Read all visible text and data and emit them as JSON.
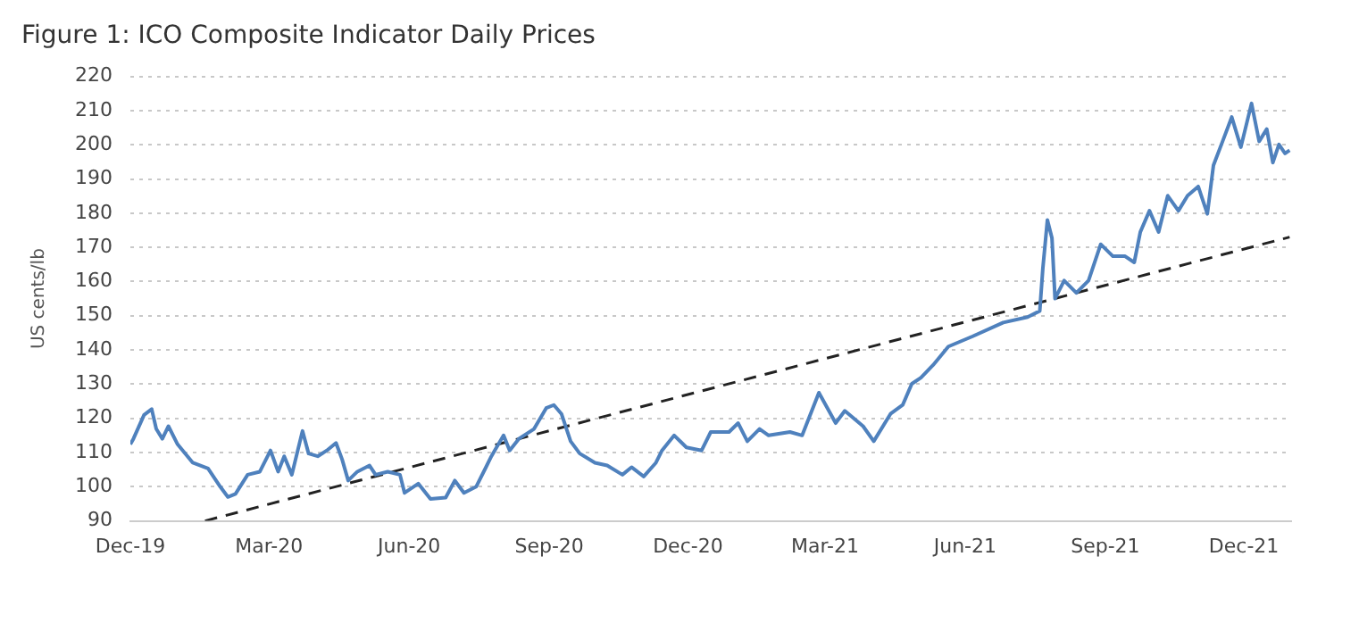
{
  "chart_data": {
    "type": "line",
    "title": "Figure 1: ICO Composite Indicator Daily Prices",
    "ylabel": "US cents/lb",
    "xlim": [
      "2019-12-01",
      "2022-01-01"
    ],
    "xticks": [
      {
        "value": "2019-12-01",
        "label": "Dec-19"
      },
      {
        "value": "2020-03-01",
        "label": "Mar-20"
      },
      {
        "value": "2020-06-01",
        "label": "Jun-20"
      },
      {
        "value": "2020-09-01",
        "label": "Sep-20"
      },
      {
        "value": "2020-12-01",
        "label": "Dec-20"
      },
      {
        "value": "2021-03-01",
        "label": "Mar-21"
      },
      {
        "value": "2021-06-01",
        "label": "Jun-21"
      },
      {
        "value": "2021-09-01",
        "label": "Sep-21"
      },
      {
        "value": "2021-12-01",
        "label": "Dec-21"
      }
    ],
    "ylim": [
      90,
      220
    ],
    "yticks": [
      90,
      100,
      110,
      120,
      130,
      140,
      150,
      160,
      170,
      180,
      190,
      200,
      210,
      220
    ],
    "grid": "y",
    "legend": false,
    "marker": "none",
    "series": [
      {
        "color": "#4f81bd",
        "line_style": "solid",
        "x": [
          "2019-12-01",
          "2019-12-03",
          "2019-12-10",
          "2019-12-15",
          "2019-12-18",
          "2019-12-22",
          "2019-12-26",
          "2020-01-01",
          "2020-01-11",
          "2020-01-21",
          "2020-01-29",
          "2020-02-03",
          "2020-02-08",
          "2020-02-16",
          "2020-02-24",
          "2020-03-02",
          "2020-03-07",
          "2020-03-11",
          "2020-03-16",
          "2020-03-23",
          "2020-03-27",
          "2020-04-02",
          "2020-04-08",
          "2020-04-14",
          "2020-04-18",
          "2020-04-22",
          "2020-04-28",
          "2020-05-06",
          "2020-05-10",
          "2020-05-18",
          "2020-05-26",
          "2020-05-29",
          "2020-06-07",
          "2020-06-15",
          "2020-06-25",
          "2020-07-01",
          "2020-07-07",
          "2020-07-15",
          "2020-07-21",
          "2020-07-25",
          "2020-08-02",
          "2020-08-06",
          "2020-08-12",
          "2020-08-22",
          "2020-08-30",
          "2020-09-04",
          "2020-09-09",
          "2020-09-15",
          "2020-09-21",
          "2020-10-01",
          "2020-10-09",
          "2020-10-19",
          "2020-10-25",
          "2020-11-02",
          "2020-11-10",
          "2020-11-14",
          "2020-11-22",
          "2020-11-30",
          "2020-12-10",
          "2020-12-16",
          "2020-12-28",
          "2021-01-03",
          "2021-01-09",
          "2021-01-17",
          "2021-01-23",
          "2021-02-06",
          "2021-02-14",
          "2021-02-25",
          "2021-03-08",
          "2021-03-14",
          "2021-03-26",
          "2021-04-02",
          "2021-04-13",
          "2021-04-21",
          "2021-04-27",
          "2021-05-03",
          "2021-05-11",
          "2021-05-21",
          "2021-06-06",
          "2021-06-26",
          "2021-07-12",
          "2021-07-20",
          "2021-07-22",
          "2021-07-25",
          "2021-07-28",
          "2021-07-30",
          "2021-08-05",
          "2021-08-13",
          "2021-08-21",
          "2021-08-29",
          "2021-09-06",
          "2021-09-14",
          "2021-09-20",
          "2021-09-24",
          "2021-09-30",
          "2021-10-06",
          "2021-10-12",
          "2021-10-19",
          "2021-10-25",
          "2021-11-01",
          "2021-11-07",
          "2021-11-11",
          "2021-11-17",
          "2021-11-23",
          "2021-11-29",
          "2021-12-06",
          "2021-12-11",
          "2021-12-16",
          "2021-12-20",
          "2021-12-24",
          "2021-12-28",
          "2021-12-31"
        ],
        "values": [
          112.4,
          114,
          121,
          122.7,
          116.9,
          114,
          117.7,
          112.4,
          107,
          105.3,
          100,
          97,
          97.9,
          103.5,
          104.4,
          110.6,
          104.4,
          108.9,
          103.5,
          116.3,
          109.7,
          108.9,
          110.6,
          112.8,
          108,
          101.8,
          104.4,
          106.2,
          103.5,
          104.4,
          103.5,
          98.2,
          100.9,
          96.4,
          96.8,
          101.8,
          98.2,
          100,
          105.3,
          108.9,
          115,
          110.6,
          114,
          116.9,
          123,
          123.9,
          121.3,
          113.3,
          109.7,
          107,
          106.2,
          103.5,
          105.7,
          103,
          107,
          110.6,
          115,
          111.5,
          110.6,
          116,
          116,
          118.6,
          113.3,
          116.9,
          115,
          116,
          115,
          127.5,
          118.6,
          122.2,
          117.7,
          113.3,
          121.3,
          123.9,
          130.1,
          131.9,
          135.6,
          141,
          144,
          148,
          149.6,
          151.4,
          163.8,
          178,
          172.7,
          155,
          160.3,
          156.7,
          160.3,
          170.9,
          167.4,
          167.4,
          165.6,
          174.5,
          180.7,
          174.5,
          185.1,
          180.7,
          185.1,
          187.8,
          179.8,
          194,
          201,
          208.1,
          199.3,
          212.1,
          201,
          204.6,
          194.8,
          200.1,
          197.5,
          198.4
        ]
      },
      {
        "color": "#222222",
        "line_style": "dashed",
        "x": [
          "2020-01-19",
          "2021-12-31"
        ],
        "values": [
          90,
          173
        ]
      }
    ]
  }
}
